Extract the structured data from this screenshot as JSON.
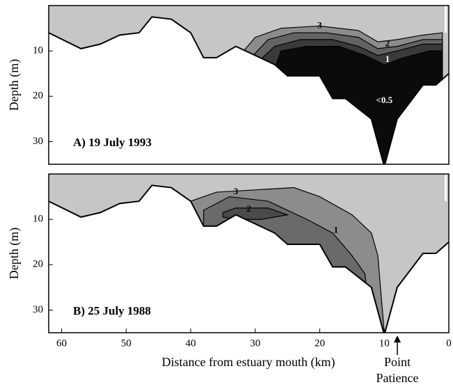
{
  "chart_data": [
    {
      "type": "contour",
      "title": "A) 19 July 1993",
      "ylabel": "Depth (m)",
      "xlim": [
        62,
        0
      ],
      "ylim": [
        0,
        35
      ],
      "xticks": [
        60,
        50,
        40,
        30,
        20,
        10,
        0
      ],
      "yticks": [
        10,
        20,
        30
      ],
      "water_color": "#c6c6c6",
      "bottom_x": [
        62,
        57,
        54,
        51,
        48,
        46,
        43,
        40,
        38,
        36,
        33,
        27,
        25,
        20,
        18,
        16,
        12,
        10,
        8,
        4,
        2,
        0
      ],
      "bottom_depth": [
        6,
        9.5,
        8.5,
        6.5,
        6,
        2.5,
        3,
        6,
        11.5,
        11.5,
        9,
        13,
        15.5,
        15.5,
        20.5,
        20.5,
        25,
        35.5,
        25,
        17.5,
        17.5,
        15
      ],
      "contours": [
        {
          "label": "3",
          "color": "#8c8c8c",
          "x": [
            33,
            30,
            26,
            20,
            14,
            11,
            8,
            4,
            1,
            1,
            33
          ],
          "y": [
            12,
            7,
            5,
            4.5,
            5.5,
            8,
            7.5,
            6.5,
            6,
            35,
            35
          ]
        },
        {
          "label": "2",
          "color": "#636363",
          "x": [
            31,
            28,
            24,
            19,
            14,
            11,
            8,
            4,
            1,
            1,
            31
          ],
          "y": [
            12,
            7.5,
            6,
            6,
            7,
            9.5,
            9,
            7.5,
            7.5,
            35,
            35
          ]
        },
        {
          "label": "1",
          "color": "#3a3a3a",
          "x": [
            30,
            27,
            23,
            18,
            14,
            11,
            8,
            4,
            1,
            1,
            30
          ],
          "y": [
            13,
            9,
            7.5,
            7.5,
            9,
            11,
            10,
            8.5,
            8.5,
            35,
            35
          ]
        },
        {
          "label": "<0.5",
          "color": "#0b0b0b",
          "x": [
            27,
            26,
            22,
            17,
            13,
            10,
            7,
            3,
            1,
            1,
            27
          ],
          "y": [
            14,
            10,
            9,
            9,
            11,
            13,
            11.5,
            10,
            10,
            35,
            35
          ]
        }
      ]
    },
    {
      "type": "contour",
      "title": "B) 25 July 1988",
      "ylabel": "Depth (m)",
      "xlabel": "Distance from estuary mouth (km)",
      "annotation": [
        "Point",
        "Patience"
      ],
      "xlim": [
        62,
        0
      ],
      "ylim": [
        0,
        35
      ],
      "xticks": [
        60,
        50,
        40,
        30,
        20,
        10,
        0
      ],
      "yticks": [
        10,
        20,
        30
      ],
      "water_color": "#c6c6c6",
      "bottom_x": [
        62,
        57,
        54,
        51,
        48,
        46,
        43,
        40,
        38,
        36,
        33,
        27,
        25,
        20,
        18,
        16,
        12,
        10,
        8,
        4,
        2,
        0
      ],
      "bottom_depth": [
        6,
        9.5,
        8.5,
        6.5,
        6,
        2.5,
        3,
        6,
        11.5,
        11.5,
        9,
        13,
        15.5,
        15.5,
        20.5,
        20.5,
        25,
        35.5,
        25,
        17.5,
        17.5,
        15
      ],
      "contours": [
        {
          "label": "3",
          "color": "#8c8c8c",
          "x": [
            40,
            36,
            30,
            24,
            20,
            15,
            12,
            11,
            10,
            40
          ],
          "y": [
            6,
            4,
            3.5,
            3,
            5,
            9,
            13,
            18,
            35,
            35
          ]
        },
        {
          "label": "2",
          "color": "#6a6a6a",
          "x": [
            38,
            34,
            28,
            22,
            18,
            15,
            13,
            12,
            38
          ],
          "y": [
            8,
            5,
            6,
            10,
            13,
            18,
            22,
            35,
            35
          ]
        },
        {
          "label": "1",
          "color": "#4a4a4a",
          "x": [
            35,
            33,
            28,
            25,
            29,
            33,
            35
          ],
          "y": [
            8.5,
            7.5,
            7.5,
            9,
            10,
            10,
            9.5
          ]
        }
      ]
    }
  ]
}
